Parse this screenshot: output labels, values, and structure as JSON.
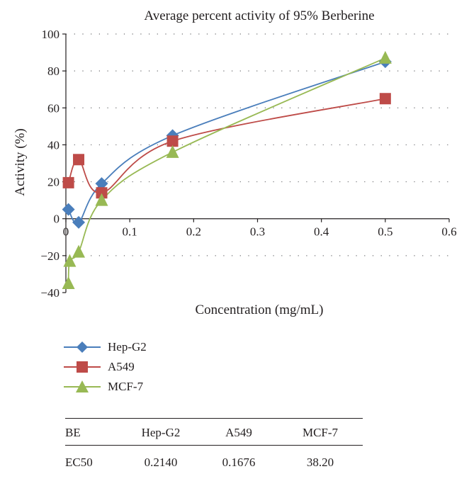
{
  "chart_data": {
    "type": "line",
    "title": "Average percent activity of 95% Berberine",
    "xlabel": "Concentration (mg/mL)",
    "ylabel": "Activity (%)",
    "xlim": [
      0,
      0.6
    ],
    "ylim": [
      -40,
      100
    ],
    "xticks": [
      0,
      0.1,
      0.2,
      0.3,
      0.4,
      0.5,
      0.6
    ],
    "yticks": [
      -40,
      -20,
      0,
      20,
      40,
      60,
      80,
      100
    ],
    "xtick_labels": [
      "0",
      "0.1",
      "0.2",
      "0.3",
      "0.4",
      "0.5",
      "0.6"
    ],
    "ytick_labels": [
      "−40",
      "−20",
      "0",
      "20",
      "40",
      "60",
      "80",
      "100"
    ],
    "grid": "horizontal-dotted",
    "legend_position": "below",
    "series": [
      {
        "name": "Hep-G2",
        "color": "#4a7ebb",
        "marker": "diamond",
        "x": [
          0.004,
          0.02,
          0.056,
          0.167,
          0.5
        ],
        "y": [
          5,
          -2,
          19,
          45,
          85
        ]
      },
      {
        "name": "A549",
        "color": "#be4b48",
        "marker": "square",
        "x": [
          0.004,
          0.02,
          0.056,
          0.167,
          0.5
        ],
        "y": [
          19.5,
          32,
          14,
          42,
          65
        ]
      },
      {
        "name": "MCF-7",
        "color": "#98b954",
        "marker": "triangle",
        "x": [
          0.004,
          0.006,
          0.02,
          0.056,
          0.167,
          0.5
        ],
        "y": [
          -35,
          -23,
          -18,
          10,
          36,
          87
        ]
      }
    ]
  },
  "ec50_table": {
    "headers": [
      "BE",
      "Hep-G2",
      "A549",
      "MCF-7"
    ],
    "rows": [
      [
        "EC50",
        "0.2140",
        "0.1676",
        "38.20"
      ]
    ]
  }
}
